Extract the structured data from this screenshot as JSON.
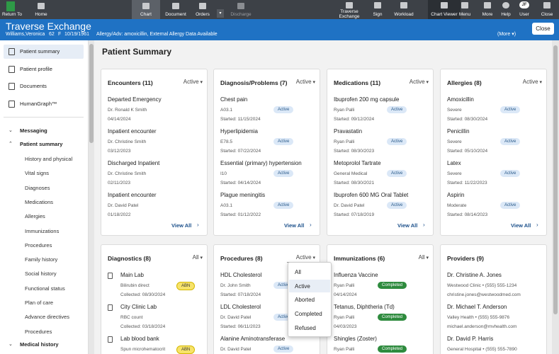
{
  "toolbar": {
    "return_to": "Return To",
    "buttons": [
      "Home",
      "Chart",
      "Document",
      "Orders",
      "Discharge"
    ],
    "right": [
      "Traverse Exchange",
      "Sign",
      "Workload",
      "Chart Viewer",
      "Menu",
      "More",
      "Help",
      "User",
      "Close"
    ],
    "user_initials": "JF"
  },
  "header": {
    "title": "Traverse Exchange",
    "patient": "Williams,Veronica",
    "age": "62",
    "sex": "F",
    "dob": "10/19/1961",
    "allergy": "Allergy/Adv: amoxicillin, External Allergy Data Available",
    "more": "(More ▾)",
    "close": "Close"
  },
  "sidebar": {
    "nav": [
      "Patient summary",
      "Patient profile",
      "Documents",
      "HumanGraph™"
    ],
    "sections": [
      {
        "label": "Messaging",
        "children": []
      },
      {
        "label": "Patient summary",
        "children": [
          "History and physical",
          "Vital signs",
          "Diagnoses",
          "Medications",
          "Allergies",
          "Immunizations",
          "Procedures",
          "Family history",
          "Social history",
          "Functional status",
          "Plan of care",
          "Advance directives",
          "Procedures"
        ]
      },
      {
        "label": "Medical history",
        "children": []
      }
    ]
  },
  "main": {
    "title": "Patient Summary",
    "cards": [
      {
        "title": "Encounters (11)",
        "filter": "Active",
        "view_all": "View All",
        "items": [
          {
            "name": "Departed Emergency",
            "sub": "Dr. Ronald K Smith",
            "date": "04/14/2024"
          },
          {
            "name": "Inpatient encounter",
            "sub": "Dr. Christine Smith",
            "date": "03/12/2023"
          },
          {
            "name": "Discharged Inpatient",
            "sub": "Dr. Christine Smith",
            "date": "02/11/2023"
          },
          {
            "name": "Inpatient encounter",
            "sub": "Dr. David Patel",
            "date": "01/18/2022"
          }
        ]
      },
      {
        "title": "Diagnosis/Problems (7)",
        "filter": "Active",
        "view_all": "View All",
        "items": [
          {
            "name": "Chest pain",
            "sub": "A03.1",
            "date": "Started: 11/15/2024",
            "badge": "Active"
          },
          {
            "name": "Hyperlipidemia",
            "sub": "E78.5",
            "date": "Started: 07/22/2024",
            "badge": "Active"
          },
          {
            "name": "Essential (primary) hypertension",
            "sub": "I10",
            "date": "Started: 04/14/2024",
            "badge": "Active"
          },
          {
            "name": "Plague meningitis",
            "sub": "A03.1",
            "date": "Started: 01/12/2022",
            "badge": "Active"
          }
        ]
      },
      {
        "title": "Medications (11)",
        "filter": "Active",
        "view_all": "View All",
        "items": [
          {
            "name": "Ibuprofen 200 mg capsule",
            "sub": "Ryan Palli",
            "date": "Started: 09/12/2024",
            "badge": "Active"
          },
          {
            "name": "Pravastatin",
            "sub": "Ryan Palli",
            "date": "Started: 08/30/2023",
            "badge": "Active"
          },
          {
            "name": "Metoprolol Tartrate",
            "sub": "General Medical",
            "date": "Started: 08/30/2021",
            "badge": "Active"
          },
          {
            "name": "Ibuprofen 600 MG Oral Tablet",
            "sub": "Dr. David Patel",
            "date": "Started: 07/18/2019",
            "badge": "Active"
          }
        ]
      },
      {
        "title": "Allergies (8)",
        "filter": "Active",
        "view_all": "View All",
        "items": [
          {
            "name": "Amoxicillin",
            "sub": "Severe",
            "date": "Started: 08/30/2024",
            "badge": "Active"
          },
          {
            "name": "Penicillin",
            "sub": "Severe",
            "date": "Started: 05/10/2024",
            "badge": "Active"
          },
          {
            "name": "Latex",
            "sub": "Severe",
            "date": "Started: 11/22/2023",
            "badge": "Active"
          },
          {
            "name": "Aspirin",
            "sub": "Moderate",
            "date": "Started: 08/14/2023",
            "badge": "Active"
          }
        ]
      },
      {
        "title": "Diagnostics (8)",
        "filter": "All",
        "items": [
          {
            "name": "Main Lab",
            "sub": "Bilirubin direct",
            "date": "Collected: 08/30/2024",
            "badge": "ABN"
          },
          {
            "name": "City Clinic Lab",
            "sub": "RBC count",
            "date": "Collected: 03/18/2024"
          },
          {
            "name": "Lab blood bank",
            "sub": "Spun microhematocrit",
            "badge": "ABN"
          }
        ]
      },
      {
        "title": "Procedures (8)",
        "filter": "Active",
        "items": [
          {
            "name": "HDL Cholesterol",
            "sub": "Dr. John Smith",
            "date": "Started: 07/18/2024",
            "badge": "Active"
          },
          {
            "name": "LDL Cholesterol",
            "sub": "Dr. David Patel",
            "date": "Started: 06/11/2023",
            "badge": "Active"
          },
          {
            "name": "Alanine Aminotransferase",
            "sub": "Dr. David Patel",
            "badge": "Active"
          }
        ]
      },
      {
        "title": "Immunizations (6)",
        "filter": "All",
        "items": [
          {
            "name": "Influenza Vaccine",
            "sub": "Ryan Palli",
            "date": "04/14/2024",
            "badge": "Completed"
          },
          {
            "name": "Tetanus, Diphtheria (Td)",
            "sub": "Ryan Palli",
            "date": "04/03/2023",
            "badge": "Completed"
          },
          {
            "name": "Shingles (Zoster)",
            "sub": "Ryan Palli",
            "badge": "Completed"
          }
        ]
      },
      {
        "title": "Providers (9)",
        "items": [
          {
            "name": "Dr. Christine A. Jones",
            "sub": "Westwood Clinic • (555) 555-1234",
            "date": "christine.jones@westwoodmed.com"
          },
          {
            "name": "Dr. Michael T. Anderson",
            "sub": "Valley Health • (555) 555-9876",
            "date": "michael.anderson@mvhealth.com"
          },
          {
            "name": "Dr. David P. Harris",
            "sub": "General Hospital • (555) 555-7890"
          }
        ]
      }
    ],
    "dropdown": {
      "options": [
        "All",
        "Active",
        "Aborted",
        "Completed",
        "Refused"
      ]
    }
  }
}
